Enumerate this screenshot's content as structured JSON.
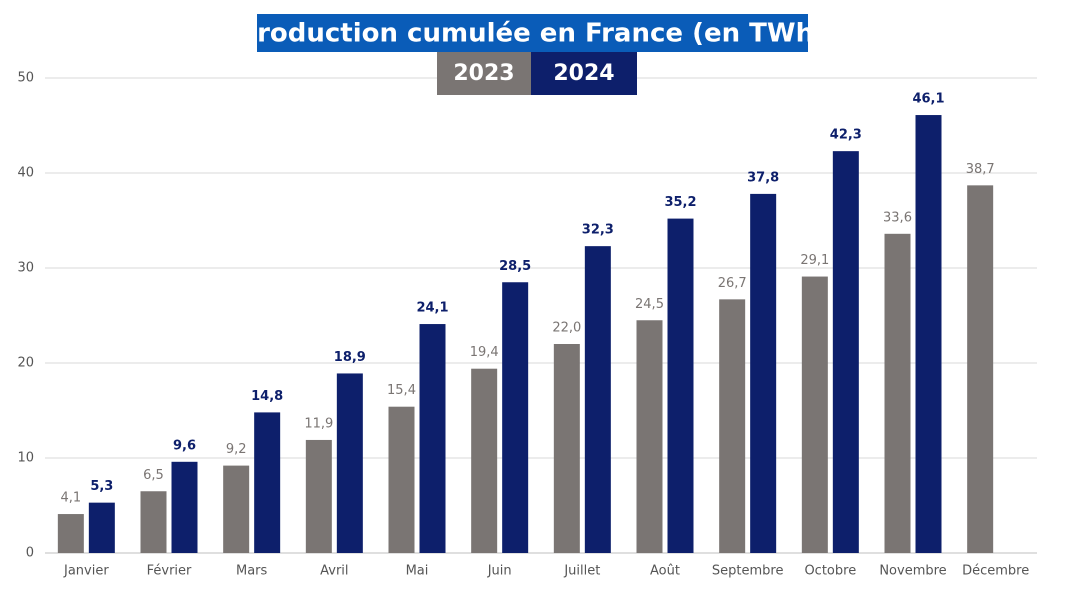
{
  "chart_data": {
    "type": "bar",
    "title": "Production cumulée en France (en TWh)",
    "categories": [
      "Janvier",
      "Février",
      "Mars",
      "Avril",
      "Mai",
      "Juin",
      "Juillet",
      "Août",
      "Septembre",
      "Octobre",
      "Novembre",
      "Décembre"
    ],
    "series": [
      {
        "name": "2023",
        "color": "#7a7573",
        "values": [
          4.1,
          6.5,
          9.2,
          11.9,
          15.4,
          19.4,
          22.0,
          24.5,
          26.7,
          29.1,
          33.6,
          38.7
        ],
        "value_labels": [
          "4,1",
          "6,5",
          "9,2",
          "11,9",
          "15,4",
          "19,4",
          "22,0",
          "24,5",
          "26,7",
          "29,1",
          "33,6",
          "38,7"
        ]
      },
      {
        "name": "2024",
        "color": "#0d1f6b",
        "values": [
          5.3,
          9.6,
          14.8,
          18.9,
          24.1,
          28.5,
          32.3,
          35.2,
          37.8,
          42.3,
          46.1,
          null
        ],
        "value_labels": [
          "5,3",
          "9,6",
          "14,8",
          "18,9",
          "24,1",
          "28,5",
          "32,3",
          "35,2",
          "37,8",
          "42,3",
          "46,1",
          null
        ]
      }
    ],
    "ylim": [
      0,
      50
    ],
    "yticks": [
      0,
      10,
      20,
      30,
      40,
      50
    ],
    "grid": true
  }
}
